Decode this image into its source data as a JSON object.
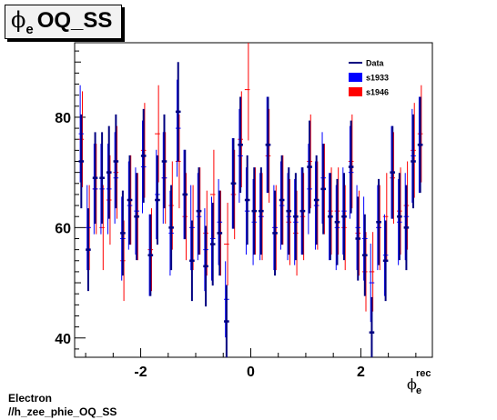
{
  "title": {
    "symbol": "ϕ",
    "subscript": "e",
    "text": "OQ_SS"
  },
  "footer": {
    "line1": "Electron",
    "line2": "//h_zee_phie_OQ_SS"
  },
  "chart_data": {
    "type": "scatter",
    "title": "ϕe OQ_SS",
    "xlabel": {
      "symbol": "ϕ",
      "sub": "e",
      "sup": "rec"
    },
    "ylabel": "",
    "xlim": [
      -3.2,
      3.3
    ],
    "ylim": [
      36.5,
      93.5
    ],
    "xticks": [
      -2,
      0,
      2
    ],
    "yticks": [
      40,
      60,
      80
    ],
    "grid": false,
    "legend_position": "top-right",
    "legend": [
      {
        "name": "Data",
        "color": "#000080",
        "style": "line"
      },
      {
        "name": "s1933",
        "color": "#0000ff",
        "style": "box"
      },
      {
        "name": "s1946",
        "color": "#ff0000",
        "style": "box"
      }
    ],
    "x_step": 0.1257,
    "x": [
      -3.079,
      -2.953,
      -2.827,
      -2.702,
      -2.576,
      -2.45,
      -2.325,
      -2.199,
      -2.073,
      -1.948,
      -1.822,
      -1.696,
      -1.571,
      -1.445,
      -1.319,
      -1.194,
      -1.068,
      -0.942,
      -0.817,
      -0.691,
      -0.565,
      -0.44,
      -0.314,
      -0.188,
      -0.063,
      0.063,
      0.188,
      0.314,
      0.44,
      0.565,
      0.691,
      0.817,
      0.942,
      1.068,
      1.194,
      1.319,
      1.445,
      1.571,
      1.696,
      1.822,
      1.948,
      2.073,
      2.199,
      2.325,
      2.45,
      2.576,
      2.702,
      2.827,
      2.953,
      3.079
    ],
    "series": [
      {
        "name": "Data",
        "color": "#000080",
        "values": [
          72,
          56,
          69,
          69,
          70,
          72,
          59,
          65,
          62,
          73,
          55,
          65,
          72,
          60,
          81,
          66,
          54,
          63,
          53,
          57,
          59,
          43,
          68,
          75,
          65,
          63,
          63,
          75,
          59,
          65,
          63,
          62,
          63,
          71,
          65,
          67,
          62,
          61,
          62,
          71,
          58,
          55,
          41,
          61,
          54,
          70,
          62,
          60,
          72,
          75
        ],
        "errors": [
          8.5,
          7.5,
          8.3,
          8.3,
          8.4,
          8.5,
          7.7,
          8.1,
          7.9,
          8.5,
          7.4,
          8.1,
          8.5,
          7.7,
          9.0,
          8.1,
          7.3,
          7.9,
          7.3,
          7.5,
          7.7,
          6.6,
          8.2,
          8.7,
          8.1,
          7.9,
          7.9,
          8.7,
          7.7,
          8.1,
          7.9,
          7.9,
          7.9,
          8.4,
          8.1,
          8.2,
          7.9,
          7.8,
          7.9,
          8.4,
          7.6,
          7.4,
          6.4,
          7.8,
          7.3,
          8.4,
          7.9,
          7.7,
          8.5,
          8.7
        ]
      },
      {
        "name": "s1933",
        "color": "#0000ff",
        "values": [
          77,
          60,
          67,
          67,
          67,
          69,
          58,
          64,
          63,
          71,
          55,
          66,
          69,
          59,
          78,
          66,
          60,
          62,
          56,
          58,
          61,
          47,
          68,
          73,
          63,
          61,
          62,
          75,
          60,
          64,
          62,
          61,
          63,
          67,
          64,
          69,
          62,
          60,
          63,
          70,
          60,
          58,
          50,
          60,
          55,
          70,
          61,
          62,
          73,
          75
        ],
        "errors": [
          8.8,
          7.7,
          8.2,
          8.2,
          8.2,
          8.3,
          7.6,
          8.0,
          7.9,
          8.4,
          7.4,
          8.1,
          8.3,
          7.7,
          8.8,
          8.1,
          7.7,
          7.9,
          7.5,
          7.6,
          7.8,
          6.9,
          8.2,
          8.5,
          7.9,
          7.8,
          7.9,
          8.7,
          7.7,
          8.0,
          7.9,
          7.8,
          7.9,
          8.2,
          8.0,
          8.3,
          7.9,
          7.7,
          7.9,
          8.4,
          7.7,
          7.6,
          7.1,
          7.7,
          7.4,
          8.4,
          7.8,
          7.9,
          8.5,
          8.7
        ]
      },
      {
        "name": "s1946",
        "color": "#ff0000",
        "values": [
          76,
          60,
          67,
          60,
          65,
          70,
          54,
          65,
          62,
          74,
          56,
          77,
          69,
          64,
          72,
          62,
          60,
          63,
          59,
          66,
          59,
          57,
          66,
          76,
          85,
          63,
          62,
          73,
          60,
          65,
          61,
          59,
          62,
          72,
          64,
          67,
          63,
          63,
          60,
          72,
          59,
          52,
          52,
          60,
          62,
          69,
          63,
          64,
          74,
          77
        ],
        "errors": [
          8.7,
          7.7,
          8.2,
          7.7,
          8.1,
          8.4,
          7.3,
          8.1,
          7.9,
          8.6,
          7.5,
          8.8,
          8.3,
          8.0,
          8.5,
          7.9,
          7.7,
          7.9,
          7.7,
          8.1,
          7.7,
          7.5,
          8.1,
          8.7,
          9.2,
          7.9,
          7.9,
          8.5,
          7.7,
          8.1,
          7.8,
          7.7,
          7.9,
          8.5,
          8.0,
          8.2,
          7.9,
          7.9,
          7.7,
          8.5,
          7.7,
          7.2,
          7.2,
          7.7,
          7.9,
          8.3,
          7.9,
          8.0,
          8.6,
          8.8
        ]
      }
    ]
  }
}
